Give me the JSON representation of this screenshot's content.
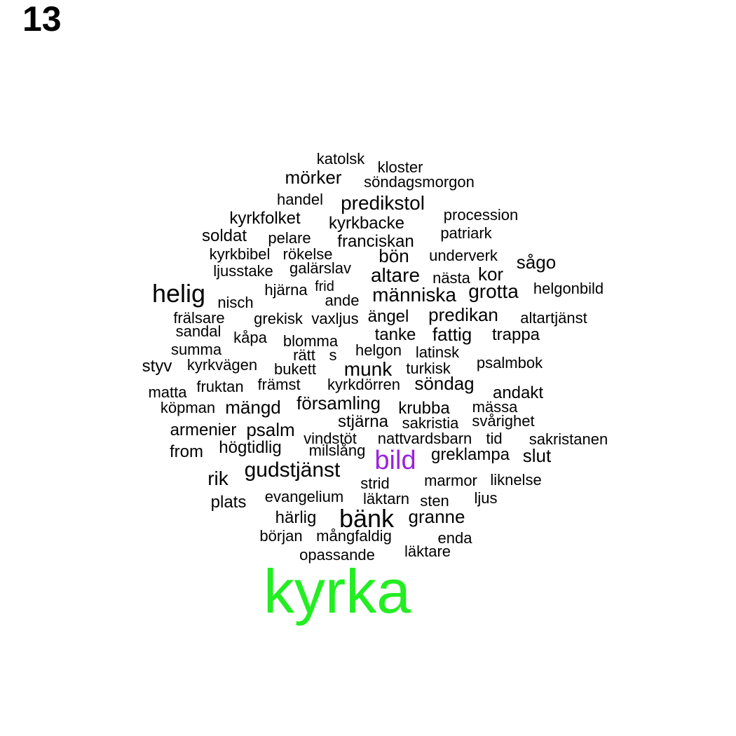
{
  "title": "13",
  "words": [
    {
      "text": "katolsk"
    },
    {
      "text": "kloster"
    },
    {
      "text": "mörker"
    },
    {
      "text": "söndagsmorgon"
    },
    {
      "text": "handel"
    },
    {
      "text": "predikstol"
    },
    {
      "text": "procession"
    },
    {
      "text": "kyrkfolket"
    },
    {
      "text": "kyrkbacke"
    },
    {
      "text": "patriark"
    },
    {
      "text": "soldat"
    },
    {
      "text": "pelare"
    },
    {
      "text": "franciskan"
    },
    {
      "text": "kyrkbibel"
    },
    {
      "text": "rökelse"
    },
    {
      "text": "bön"
    },
    {
      "text": "underverk"
    },
    {
      "text": "sågo"
    },
    {
      "text": "ljusstake"
    },
    {
      "text": "galärslav"
    },
    {
      "text": "altare"
    },
    {
      "text": "nästa"
    },
    {
      "text": "kor"
    },
    {
      "text": "helig"
    },
    {
      "text": "hjärna"
    },
    {
      "text": "frid"
    },
    {
      "text": "människa"
    },
    {
      "text": "grotta"
    },
    {
      "text": "helgonbild"
    },
    {
      "text": "nisch"
    },
    {
      "text": "ande"
    },
    {
      "text": "frälsare"
    },
    {
      "text": "grekisk"
    },
    {
      "text": "vaxljus"
    },
    {
      "text": "ängel"
    },
    {
      "text": "predikan"
    },
    {
      "text": "altartjänst"
    },
    {
      "text": "sandal"
    },
    {
      "text": "kåpa"
    },
    {
      "text": "blomma"
    },
    {
      "text": "tanke"
    },
    {
      "text": "fattig"
    },
    {
      "text": "trappa"
    },
    {
      "text": "summa"
    },
    {
      "text": "rätt"
    },
    {
      "text": "s"
    },
    {
      "text": "helgon"
    },
    {
      "text": "latinsk"
    },
    {
      "text": "styv"
    },
    {
      "text": "kyrkvägen"
    },
    {
      "text": "bukett"
    },
    {
      "text": "munk"
    },
    {
      "text": "turkisk"
    },
    {
      "text": "psalmbok"
    },
    {
      "text": "matta"
    },
    {
      "text": "fruktan"
    },
    {
      "text": "främst"
    },
    {
      "text": "kyrkdörren"
    },
    {
      "text": "söndag"
    },
    {
      "text": "andakt"
    },
    {
      "text": "köpman"
    },
    {
      "text": "mängd"
    },
    {
      "text": "församling"
    },
    {
      "text": "krubba"
    },
    {
      "text": "mässa"
    },
    {
      "text": "stjärna"
    },
    {
      "text": "sakristia"
    },
    {
      "text": "svårighet"
    },
    {
      "text": "armenier"
    },
    {
      "text": "psalm"
    },
    {
      "text": "vindstöt"
    },
    {
      "text": "nattvardsbarn"
    },
    {
      "text": "tid"
    },
    {
      "text": "sakristanen"
    },
    {
      "text": "from"
    },
    {
      "text": "högtidlig"
    },
    {
      "text": "milslång"
    },
    {
      "text": "bild"
    },
    {
      "text": "greklampa"
    },
    {
      "text": "slut"
    },
    {
      "text": "rik"
    },
    {
      "text": "gudstjänst"
    },
    {
      "text": "strid"
    },
    {
      "text": "marmor"
    },
    {
      "text": "liknelse"
    },
    {
      "text": "plats"
    },
    {
      "text": "evangelium"
    },
    {
      "text": "läktarn"
    },
    {
      "text": "sten"
    },
    {
      "text": "ljus"
    },
    {
      "text": "härlig"
    },
    {
      "text": "bänk"
    },
    {
      "text": "granne"
    },
    {
      "text": "början"
    },
    {
      "text": "mångfaldig"
    },
    {
      "text": "enda"
    },
    {
      "text": "opassande"
    },
    {
      "text": "läktare"
    },
    {
      "text": "kyrka"
    }
  ],
  "colors": {
    "default": "#000000",
    "highlight_green": "#22ee22",
    "highlight_purple": "#9a22e0"
  }
}
